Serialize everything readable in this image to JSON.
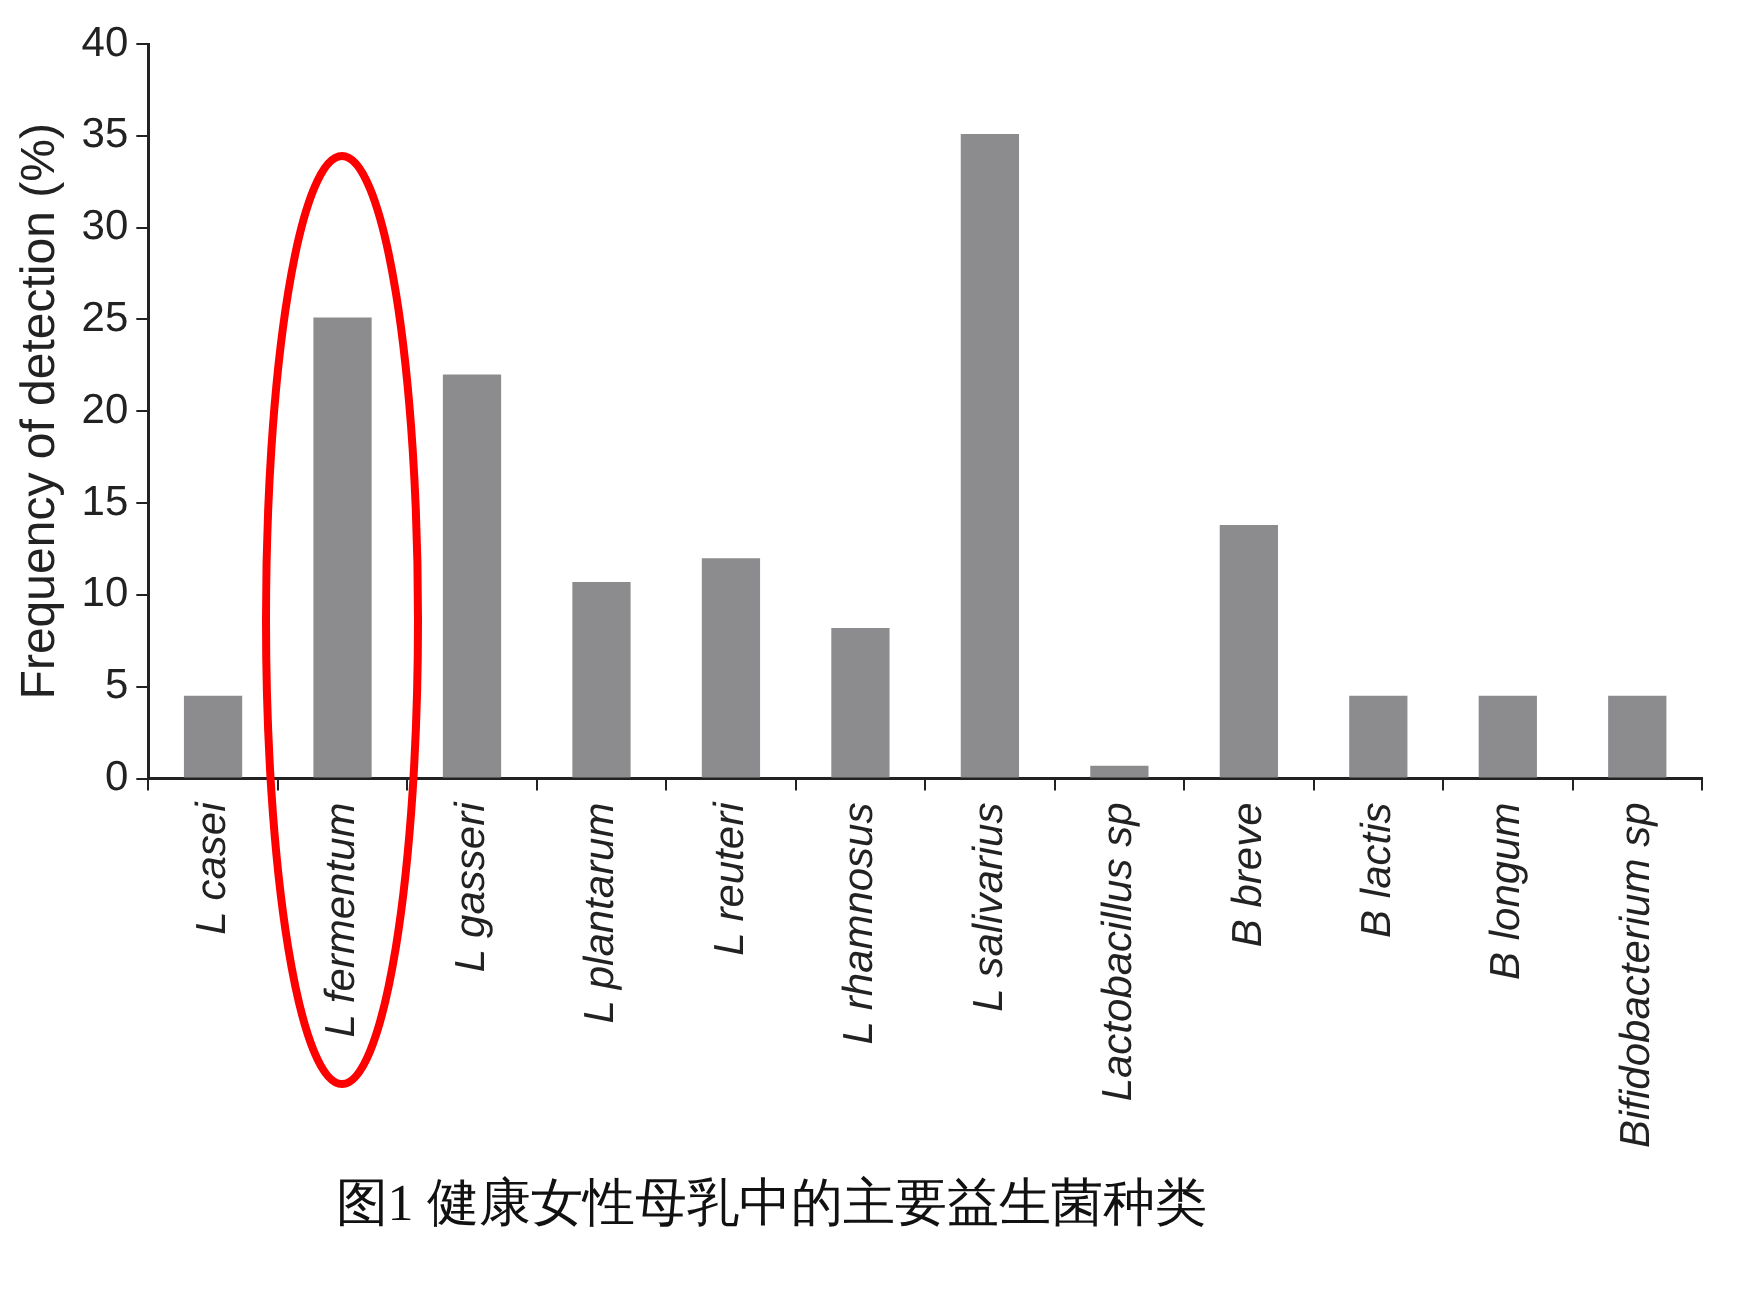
{
  "chart_data": {
    "type": "bar",
    "ylabel": "Frequency of detection (%)",
    "categories": [
      "L casei",
      "L fermentum",
      "L gasseri",
      "L plantarum",
      "L reuteri",
      "L rhamnosus",
      "L salivarius",
      "Lactobacillus sp",
      "B breve",
      "B lactis",
      "B longum",
      "Bifidobacterium sp"
    ],
    "values": [
      4.5,
      25.1,
      22,
      10.7,
      12,
      8.2,
      35.1,
      0.7,
      13.8,
      4.5,
      4.5,
      4.5
    ],
    "color": "#8c8c8e",
    "ylim": [
      0,
      40
    ],
    "yticks": [
      0,
      5,
      10,
      15,
      20,
      25,
      30,
      35,
      40
    ],
    "grid": false,
    "legend": false,
    "annotations": [
      "图1  健康女性母乳中的主要益生菌种类"
    ]
  }
}
